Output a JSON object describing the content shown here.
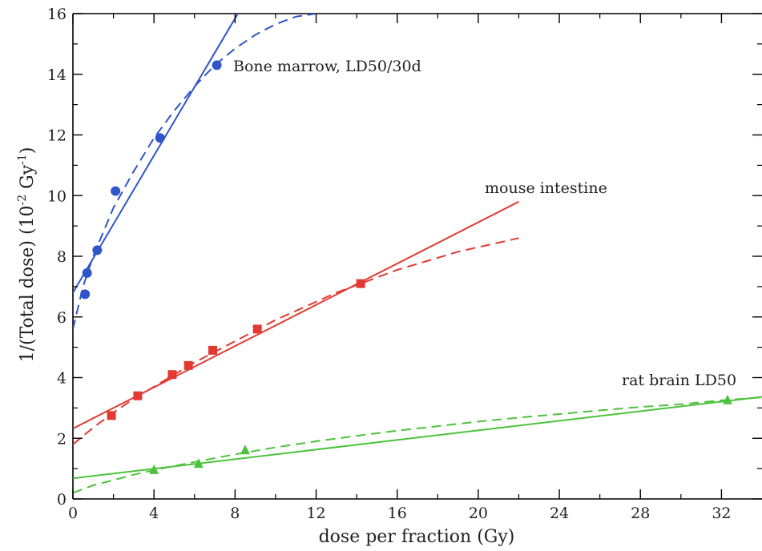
{
  "chart_data": {
    "type": "scatter",
    "xlabel": "dose per fraction (Gy)",
    "ylabel_parts": [
      "1/(Total dose) (10",
      "-2",
      " Gy",
      "-1",
      ")"
    ],
    "xlim": [
      0,
      34
    ],
    "ylim": [
      0,
      16
    ],
    "xticks": [
      "0",
      "4",
      "8",
      "12",
      "16",
      "20",
      "24",
      "28",
      "32"
    ],
    "yticks": [
      "0",
      "2",
      "4",
      "6",
      "8",
      "10",
      "12",
      "14",
      "16"
    ],
    "series": [
      {
        "name": "Bone marrow, LD50/30d",
        "color": "#2f55c9",
        "marker": "circle",
        "points": [
          {
            "x": 0.6,
            "y": 6.75
          },
          {
            "x": 0.7,
            "y": 7.45
          },
          {
            "x": 1.2,
            "y": 8.2
          },
          {
            "x": 2.1,
            "y": 10.15
          },
          {
            "x": 4.3,
            "y": 11.9
          },
          {
            "x": 7.1,
            "y": 14.3
          }
        ],
        "linear_fit": {
          "intercept": 6.8,
          "slope": 1.13
        },
        "curve_fit": [
          [
            0,
            5.6
          ],
          [
            0.5,
            7.0
          ],
          [
            1.0,
            8.0
          ],
          [
            2.0,
            9.6
          ],
          [
            3.0,
            10.8
          ],
          [
            4.0,
            11.9
          ],
          [
            5.0,
            12.8
          ],
          [
            6.0,
            13.6
          ],
          [
            7.0,
            14.3
          ],
          [
            8.0,
            14.85
          ],
          [
            9.0,
            15.3
          ],
          [
            10.0,
            15.65
          ],
          [
            11.0,
            15.9
          ],
          [
            12.0,
            16.0
          ]
        ]
      },
      {
        "name": "mouse intestine",
        "color": "#e23a32",
        "marker": "square",
        "points": [
          {
            "x": 1.9,
            "y": 2.75
          },
          {
            "x": 3.2,
            "y": 3.4
          },
          {
            "x": 4.9,
            "y": 4.1
          },
          {
            "x": 5.7,
            "y": 4.4
          },
          {
            "x": 6.9,
            "y": 4.9
          },
          {
            "x": 9.1,
            "y": 5.6
          },
          {
            "x": 14.2,
            "y": 7.1
          }
        ],
        "linear_fit": {
          "intercept": 2.32,
          "slope": 0.34,
          "xmax": 22
        },
        "curve_fit": [
          [
            0,
            1.8
          ],
          [
            1,
            2.35
          ],
          [
            2,
            2.85
          ],
          [
            3,
            3.3
          ],
          [
            4,
            3.7
          ],
          [
            5,
            4.1
          ],
          [
            6,
            4.5
          ],
          [
            7,
            4.85
          ],
          [
            8,
            5.2
          ],
          [
            9,
            5.55
          ],
          [
            10,
            5.9
          ],
          [
            11,
            6.2
          ],
          [
            12,
            6.5
          ],
          [
            13,
            6.8
          ],
          [
            14,
            7.05
          ],
          [
            15,
            7.3
          ],
          [
            16,
            7.55
          ],
          [
            17,
            7.75
          ],
          [
            18,
            7.95
          ],
          [
            19,
            8.15
          ],
          [
            20,
            8.3
          ],
          [
            21,
            8.45
          ],
          [
            22,
            8.6
          ]
        ]
      },
      {
        "name": "rat brain LD50",
        "color": "#4cc23c",
        "marker": "triangle",
        "points": [
          {
            "x": 4.0,
            "y": 0.95
          },
          {
            "x": 6.2,
            "y": 1.15
          },
          {
            "x": 8.5,
            "y": 1.6
          },
          {
            "x": 32.3,
            "y": 3.25
          }
        ],
        "linear_fit": {
          "intercept": 0.68,
          "slope": 0.079,
          "xmax": 34
        },
        "curve_fit": [
          [
            0,
            0.2
          ],
          [
            1,
            0.45
          ],
          [
            2,
            0.62
          ],
          [
            3,
            0.8
          ],
          [
            4,
            0.95
          ],
          [
            6,
            1.22
          ],
          [
            8,
            1.47
          ],
          [
            10,
            1.7
          ],
          [
            12,
            1.9
          ],
          [
            14,
            2.08
          ],
          [
            16,
            2.25
          ],
          [
            18,
            2.4
          ],
          [
            20,
            2.55
          ],
          [
            22,
            2.68
          ],
          [
            24,
            2.8
          ],
          [
            26,
            2.92
          ],
          [
            28,
            3.03
          ],
          [
            30,
            3.12
          ],
          [
            32,
            3.25
          ],
          [
            34,
            3.35
          ]
        ]
      }
    ]
  }
}
